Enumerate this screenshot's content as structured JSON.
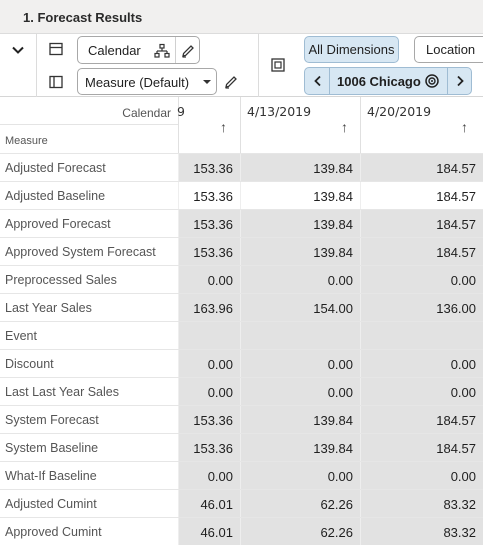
{
  "title": "1. Forecast Results",
  "toolbar": {
    "calendar_label": "Calendar",
    "measure_label": "Measure (Default)",
    "all_dimensions_label": "All Dimensions",
    "location_label": "Location",
    "location_value": "1006 Chicago"
  },
  "grid": {
    "corner_calendar": "Calendar",
    "corner_measure": "Measure",
    "partial_col_glyph": "9",
    "columns": [
      "4/13/2019",
      "4/20/2019"
    ],
    "rows": [
      {
        "label": "Adjusted Forecast",
        "values": [
          "153.36",
          "139.84",
          "184.57"
        ]
      },
      {
        "label": "Adjusted Baseline",
        "values": [
          "153.36",
          "139.84",
          "184.57"
        ]
      },
      {
        "label": "Approved Forecast",
        "values": [
          "153.36",
          "139.84",
          "184.57"
        ]
      },
      {
        "label": "Approved System Forecast",
        "values": [
          "153.36",
          "139.84",
          "184.57"
        ]
      },
      {
        "label": "Preprocessed Sales",
        "values": [
          "0.00",
          "0.00",
          "0.00"
        ]
      },
      {
        "label": "Last Year Sales",
        "values": [
          "163.96",
          "154.00",
          "136.00"
        ]
      },
      {
        "label": "Event",
        "values": [
          "",
          "",
          ""
        ]
      },
      {
        "label": "Discount",
        "values": [
          "0.00",
          "0.00",
          "0.00"
        ]
      },
      {
        "label": "Last Last Year Sales",
        "values": [
          "0.00",
          "0.00",
          "0.00"
        ]
      },
      {
        "label": "System Forecast",
        "values": [
          "153.36",
          "139.84",
          "184.57"
        ]
      },
      {
        "label": "System Baseline",
        "values": [
          "153.36",
          "139.84",
          "184.57"
        ]
      },
      {
        "label": "What-If Baseline",
        "values": [
          "0.00",
          "0.00",
          "0.00"
        ]
      },
      {
        "label": "Adjusted Cumint",
        "values": [
          "46.01",
          "62.26",
          "83.32"
        ]
      },
      {
        "label": "Approved Cumint",
        "values": [
          "46.01",
          "62.26",
          "83.32"
        ]
      }
    ]
  },
  "colors": {
    "active_button": "#d7e7f3",
    "shaded_cell": "#e2e2e2",
    "title_bar": "#f1f0ef"
  },
  "icons": [
    "chevron-down-icon",
    "panel-icon",
    "hierarchy-icon",
    "pencil-icon",
    "sidebar-panel-icon",
    "caret-down-icon",
    "layout-icon",
    "chevron-left-icon",
    "target-icon",
    "chevron-right-icon",
    "sort-up-icon"
  ]
}
